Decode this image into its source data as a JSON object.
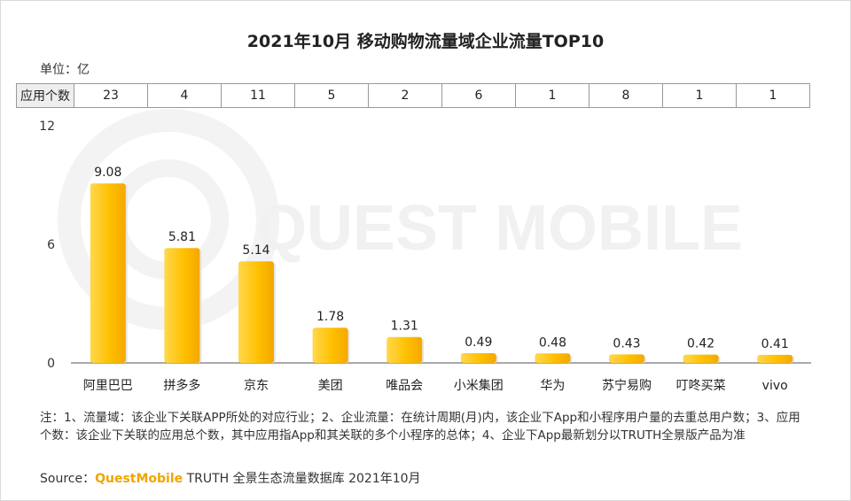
{
  "chart_data": {
    "type": "bar",
    "title": "2021年10月 移动购物流量域企业流量TOP10",
    "unit_label": "单位：亿",
    "categories": [
      "阿里巴巴",
      "拼多多",
      "京东",
      "美团",
      "唯品会",
      "小米集团",
      "华为",
      "苏宁易购",
      "叮咚买菜",
      "vivo"
    ],
    "values": [
      9.08,
      5.81,
      5.14,
      1.78,
      1.31,
      0.49,
      0.48,
      0.43,
      0.42,
      0.41
    ],
    "value_labels": [
      "9.08",
      "5.81",
      "5.14",
      "1.78",
      "1.31",
      "0.49",
      "0.48",
      "0.43",
      "0.42",
      "0.41"
    ],
    "ylim": [
      0,
      12
    ],
    "yticks": [
      "0",
      "6",
      "12"
    ],
    "ytick_values": [
      0,
      6,
      12
    ],
    "xlabel": "",
    "ylabel": "",
    "bar_color": "#ffc000",
    "bar_color_light": "#ffd84d",
    "bar_color_dark": "#f4a800"
  },
  "app_count_row": {
    "header": "应用个数",
    "values": [
      "23",
      "4",
      "11",
      "5",
      "2",
      "6",
      "1",
      "8",
      "1",
      "1"
    ]
  },
  "watermark": "QUEST MOBILE",
  "note": "注：1、流量域：该企业下关联APP所处的对应行业；2、企业流量：在统计周期(月)内，该企业下App和小程序用户量的去重总用户数；3、应用个数：该企业下关联的应用总个数，其中应用指App和其关联的多个小程序的总体；4、企业下App最新划分以TRUTH全景版产品为准",
  "source": {
    "label": "Source：",
    "brand": "QuestMobile",
    "rest": " TRUTH 全景生态流量数据库 2021年10月"
  }
}
